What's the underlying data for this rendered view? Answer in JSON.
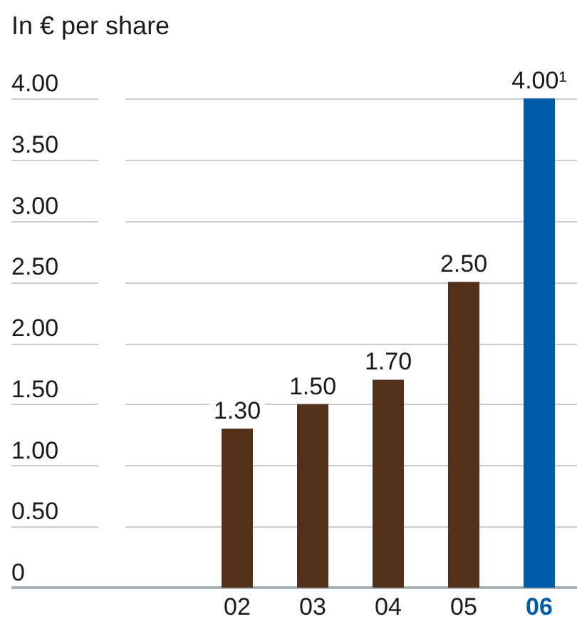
{
  "chart_data": {
    "type": "bar",
    "ylabel": "In € per share",
    "categories": [
      "02",
      "03",
      "04",
      "05",
      "06"
    ],
    "values": [
      1.3,
      1.5,
      1.7,
      2.5,
      4.0
    ],
    "colors": [
      "#54301a",
      "#54301a",
      "#54301a",
      "#54301a",
      "#005ba9"
    ],
    "value_labels": [
      "1.30",
      "1.50",
      "1.70",
      "2.50",
      "4.00¹"
    ],
    "ylim": [
      0,
      4
    ],
    "yticks": [
      0,
      {
        "value": 0.5,
        "label": "0.50"
      },
      {
        "value": 1,
        "label": "1.00"
      },
      {
        "value": 1.5,
        "label": "1.50"
      },
      {
        "value": 2,
        "label": "2.00"
      },
      {
        "value": 2.5,
        "label": "2.50"
      },
      {
        "value": 3,
        "label": "3.00"
      },
      {
        "value": 3.5,
        "label": "3.50"
      },
      {
        "value": 4,
        "label": "4.00"
      }
    ],
    "grid": "y"
  }
}
